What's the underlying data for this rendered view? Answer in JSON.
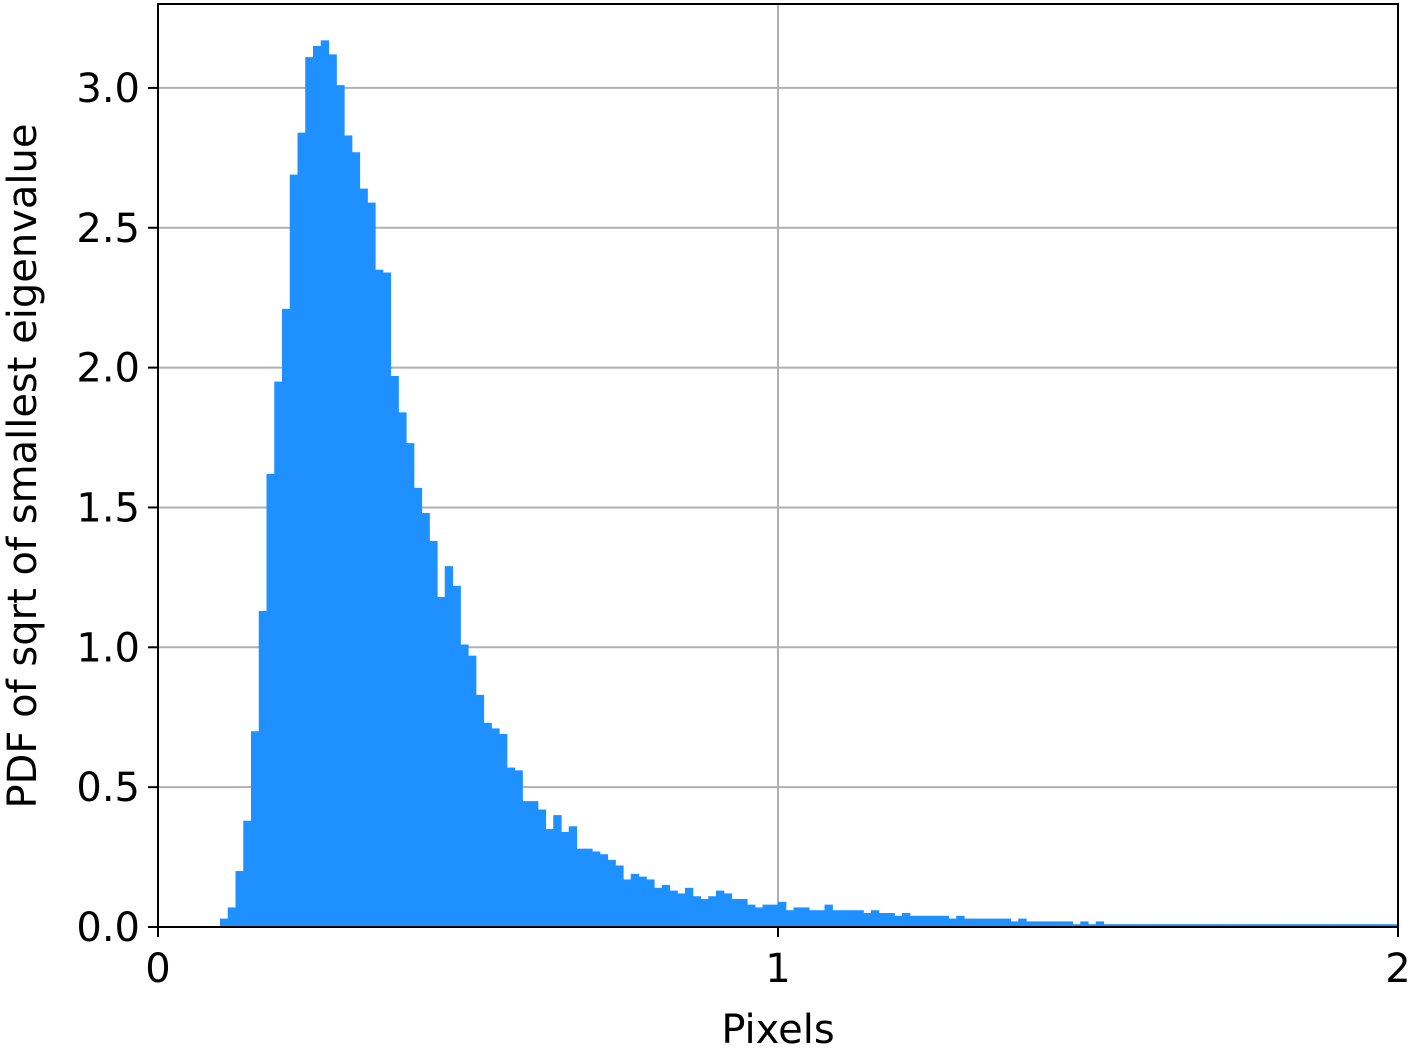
{
  "chart_data": {
    "type": "bar",
    "title": "",
    "xlabel": "Pixels",
    "ylabel": "PDF of sqrt of smallest eigenvalue",
    "xlim": [
      0,
      2
    ],
    "ylim": [
      0,
      3.3
    ],
    "x_ticks": [
      0,
      1,
      2
    ],
    "x_tick_labels": [
      "0",
      "1",
      "2"
    ],
    "y_ticks": [
      0,
      0.5,
      1.0,
      1.5,
      2.0,
      2.5,
      3.0
    ],
    "y_tick_labels": [
      "0.0",
      "0.5",
      "1.0",
      "1.5",
      "2.0",
      "2.5",
      "3.0"
    ],
    "grid": true,
    "bar_color": "#1e90ff",
    "bin_width": 0.0125,
    "bin_start": 0.0,
    "values": [
      0,
      0,
      0,
      0,
      0,
      0,
      0,
      0,
      0.03,
      0.07,
      0.2,
      0.38,
      0.7,
      1.13,
      1.62,
      1.95,
      2.21,
      2.69,
      2.84,
      3.11,
      3.15,
      3.17,
      3.12,
      3.01,
      2.83,
      2.77,
      2.64,
      2.59,
      2.35,
      2.34,
      1.97,
      1.84,
      1.73,
      1.57,
      1.48,
      1.38,
      1.18,
      1.29,
      1.22,
      1.01,
      0.97,
      0.83,
      0.73,
      0.71,
      0.69,
      0.57,
      0.56,
      0.45,
      0.45,
      0.42,
      0.35,
      0.4,
      0.34,
      0.36,
      0.28,
      0.28,
      0.27,
      0.26,
      0.24,
      0.22,
      0.17,
      0.19,
      0.18,
      0.17,
      0.14,
      0.15,
      0.13,
      0.12,
      0.14,
      0.11,
      0.1,
      0.11,
      0.13,
      0.12,
      0.1,
      0.1,
      0.08,
      0.07,
      0.08,
      0.08,
      0.09,
      0.06,
      0.07,
      0.07,
      0.06,
      0.06,
      0.08,
      0.06,
      0.06,
      0.06,
      0.06,
      0.05,
      0.06,
      0.05,
      0.05,
      0.04,
      0.05,
      0.04,
      0.04,
      0.04,
      0.04,
      0.04,
      0.03,
      0.04,
      0.03,
      0.03,
      0.03,
      0.03,
      0.03,
      0.03,
      0.02,
      0.03,
      0.02,
      0.02,
      0.02,
      0.02,
      0.02,
      0.02,
      0.01,
      0.02,
      0.01,
      0.02,
      0.01,
      0.01,
      0.01,
      0.01,
      0.01,
      0.01,
      0.01,
      0.01,
      0.01,
      0.01,
      0.01,
      0.01,
      0.01,
      0.01,
      0.01,
      0.01,
      0.01,
      0.01,
      0.01,
      0.01,
      0.01,
      0.01,
      0.01,
      0.01,
      0.01,
      0.01,
      0.01,
      0.01,
      0.01,
      0.01,
      0.01,
      0.01,
      0.01,
      0.01,
      0.01,
      0.01,
      0.01,
      0.01
    ]
  }
}
